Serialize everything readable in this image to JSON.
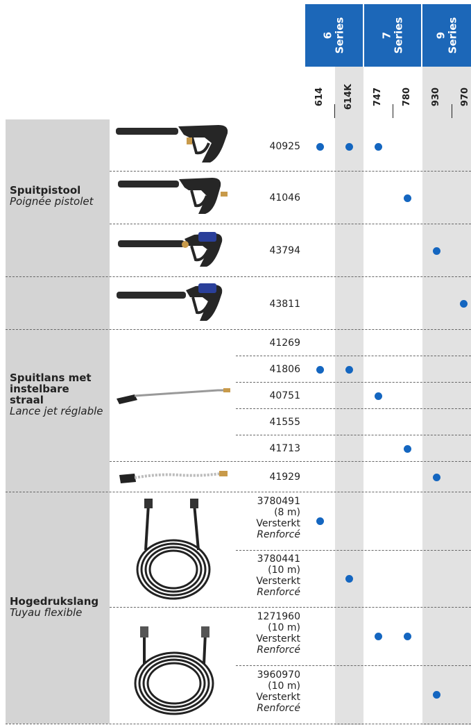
{
  "series": [
    {
      "number": "6",
      "label": "Series"
    },
    {
      "number": "7",
      "label": "Series"
    },
    {
      "number": "9",
      "label": "Series"
    }
  ],
  "models": [
    "614",
    "614K",
    "747",
    "780",
    "930",
    "970"
  ],
  "categories": [
    {
      "nl": "Spuitpistool",
      "fr": "Poignée pistolet"
    },
    {
      "nl": "Spuitlans met instelbare straal",
      "fr": "Lance jet réglable"
    },
    {
      "nl": "Hogedrukslang",
      "fr": "Tuyau flexible"
    }
  ],
  "rows": [
    {
      "part": "40925",
      "compat": [
        "614",
        "614K",
        "747"
      ]
    },
    {
      "part": "41046",
      "compat": [
        "780"
      ]
    },
    {
      "part": "43794",
      "compat": [
        "930"
      ]
    },
    {
      "part": "43811",
      "compat": [
        "970"
      ]
    },
    {
      "part": "41269",
      "compat": []
    },
    {
      "part": "41806",
      "compat": [
        "614",
        "614K"
      ]
    },
    {
      "part": "40751",
      "compat": [
        "747"
      ]
    },
    {
      "part": "41555",
      "compat": []
    },
    {
      "part": "41713",
      "compat": [
        "780"
      ]
    },
    {
      "part": "41929",
      "compat": [
        "930"
      ]
    },
    {
      "part": "3780491",
      "length": "(8 m)",
      "type_nl": "Versterkt",
      "type_fr": "Renforcé",
      "compat": [
        "614"
      ]
    },
    {
      "part": "3780441",
      "length": "(10 m)",
      "type_nl": "Versterkt",
      "type_fr": "Renforcé",
      "compat": [
        "614K"
      ]
    },
    {
      "part": "1271960",
      "length": "(10 m)",
      "type_nl": "Versterkt",
      "type_fr": "Renforcé",
      "compat": [
        "747",
        "780"
      ]
    },
    {
      "part": "3960970",
      "length": "(10 m)",
      "type_nl": "Versterkt",
      "type_fr": "Renforcé",
      "compat": [
        "930"
      ]
    }
  ],
  "colors": {
    "accent": "#1c67b8",
    "dot": "#1466c0",
    "shade": "#e2e2e2",
    "category_bg": "#d4d4d4"
  },
  "icons": [
    "spray-gun-icon",
    "spray-gun-blue-icon",
    "lance-icon",
    "hose-icon"
  ]
}
